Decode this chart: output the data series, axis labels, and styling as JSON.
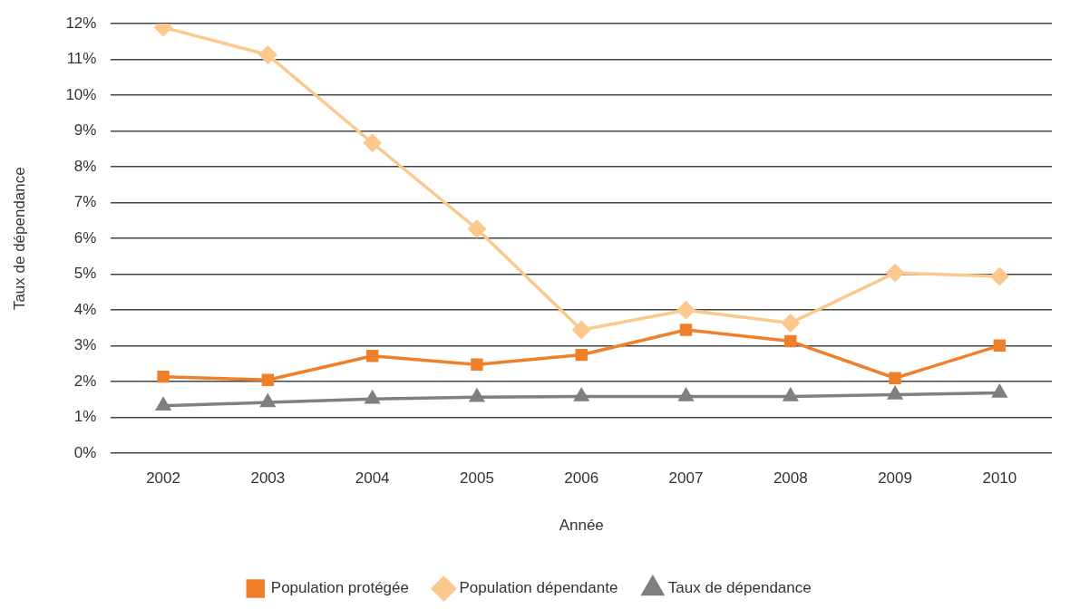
{
  "chart_data": {
    "type": "line",
    "xlabel": "Année",
    "ylabel": "Taux de dépendance",
    "categories": [
      "2002",
      "2003",
      "2004",
      "2005",
      "2006",
      "2007",
      "2008",
      "2009",
      "2010"
    ],
    "series": [
      {
        "name": "Population protégée",
        "color": "#f07f2a",
        "marker": "square",
        "values": [
          2.14,
          2.05,
          2.72,
          2.48,
          2.75,
          3.45,
          3.13,
          2.1,
          3.01
        ]
      },
      {
        "name": "Population dépendante",
        "color": "#fbc98e",
        "marker": "diamond",
        "values": [
          11.9,
          11.13,
          8.67,
          6.27,
          3.45,
          4.0,
          3.64,
          5.04,
          4.94
        ]
      },
      {
        "name": "Taux de dépendance",
        "color": "#7f7f7f",
        "marker": "triangle",
        "values": [
          1.33,
          1.42,
          1.52,
          1.57,
          1.59,
          1.59,
          1.59,
          1.64,
          1.69
        ]
      }
    ],
    "ylim": [
      0,
      12
    ],
    "yticks": [
      {
        "value": 0,
        "label": "0%"
      },
      {
        "value": 1,
        "label": "1%"
      },
      {
        "value": 2,
        "label": "2%"
      },
      {
        "value": 3,
        "label": "3%"
      },
      {
        "value": 4,
        "label": "4%"
      },
      {
        "value": 5,
        "label": "5%"
      },
      {
        "value": 6,
        "label": "6%"
      },
      {
        "value": 7,
        "label": "7%"
      },
      {
        "value": 8,
        "label": "8%"
      },
      {
        "value": 9,
        "label": "9%"
      },
      {
        "value": 10,
        "label": "10%"
      },
      {
        "value": 11,
        "label": "11%"
      },
      {
        "value": 12,
        "label": "12%"
      }
    ],
    "grid": "y",
    "legend": "bottom",
    "line_style": "solid"
  }
}
